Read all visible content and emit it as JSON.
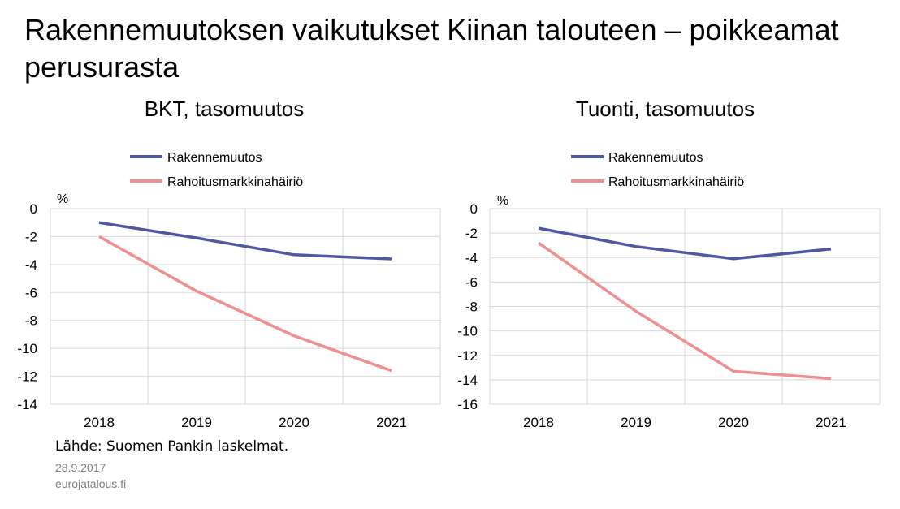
{
  "slide": {
    "title": "Rakennemuutoksen vaikutukset Kiinan talouteen – poikkeamat perusurasta",
    "source": "Lähde: Suomen Pankin laskelmat.",
    "date": "28.9.2017",
    "site": "eurojatalous.fi"
  },
  "colors": {
    "series1": "#4f58a3",
    "series2": "#ef8f8f",
    "grid": "#d9d9d9",
    "axis": "#d9d9d9"
  },
  "chart_data": [
    {
      "type": "line",
      "title": "BKT, tasomuutos",
      "unit": "%",
      "categories": [
        "2018",
        "2019",
        "2020",
        "2021"
      ],
      "ylim": [
        -14,
        0
      ],
      "yticks": [
        0,
        -2,
        -4,
        -6,
        -8,
        -10,
        -12,
        -14
      ],
      "grid": true,
      "legend": "top",
      "series": [
        {
          "name": "Rakennemuutos",
          "values": [
            -1.0,
            -2.1,
            -3.3,
            -3.6
          ]
        },
        {
          "name": "Rahoitusmarkkinahäiriö",
          "values": [
            -2.0,
            -5.9,
            -9.1,
            -11.6
          ]
        }
      ]
    },
    {
      "type": "line",
      "title": "Tuonti, tasomuutos",
      "unit": "%",
      "categories": [
        "2018",
        "2019",
        "2020",
        "2021"
      ],
      "ylim": [
        -16,
        0
      ],
      "yticks": [
        0,
        -2,
        -4,
        -6,
        -8,
        -10,
        -12,
        -14,
        -16
      ],
      "grid": true,
      "legend": "top",
      "series": [
        {
          "name": "Rakennemuutos",
          "values": [
            -1.6,
            -3.1,
            -4.1,
            -3.3
          ]
        },
        {
          "name": "Rahoitusmarkkinahäiriö",
          "values": [
            -2.8,
            -8.4,
            -13.3,
            -13.9
          ]
        }
      ]
    }
  ]
}
